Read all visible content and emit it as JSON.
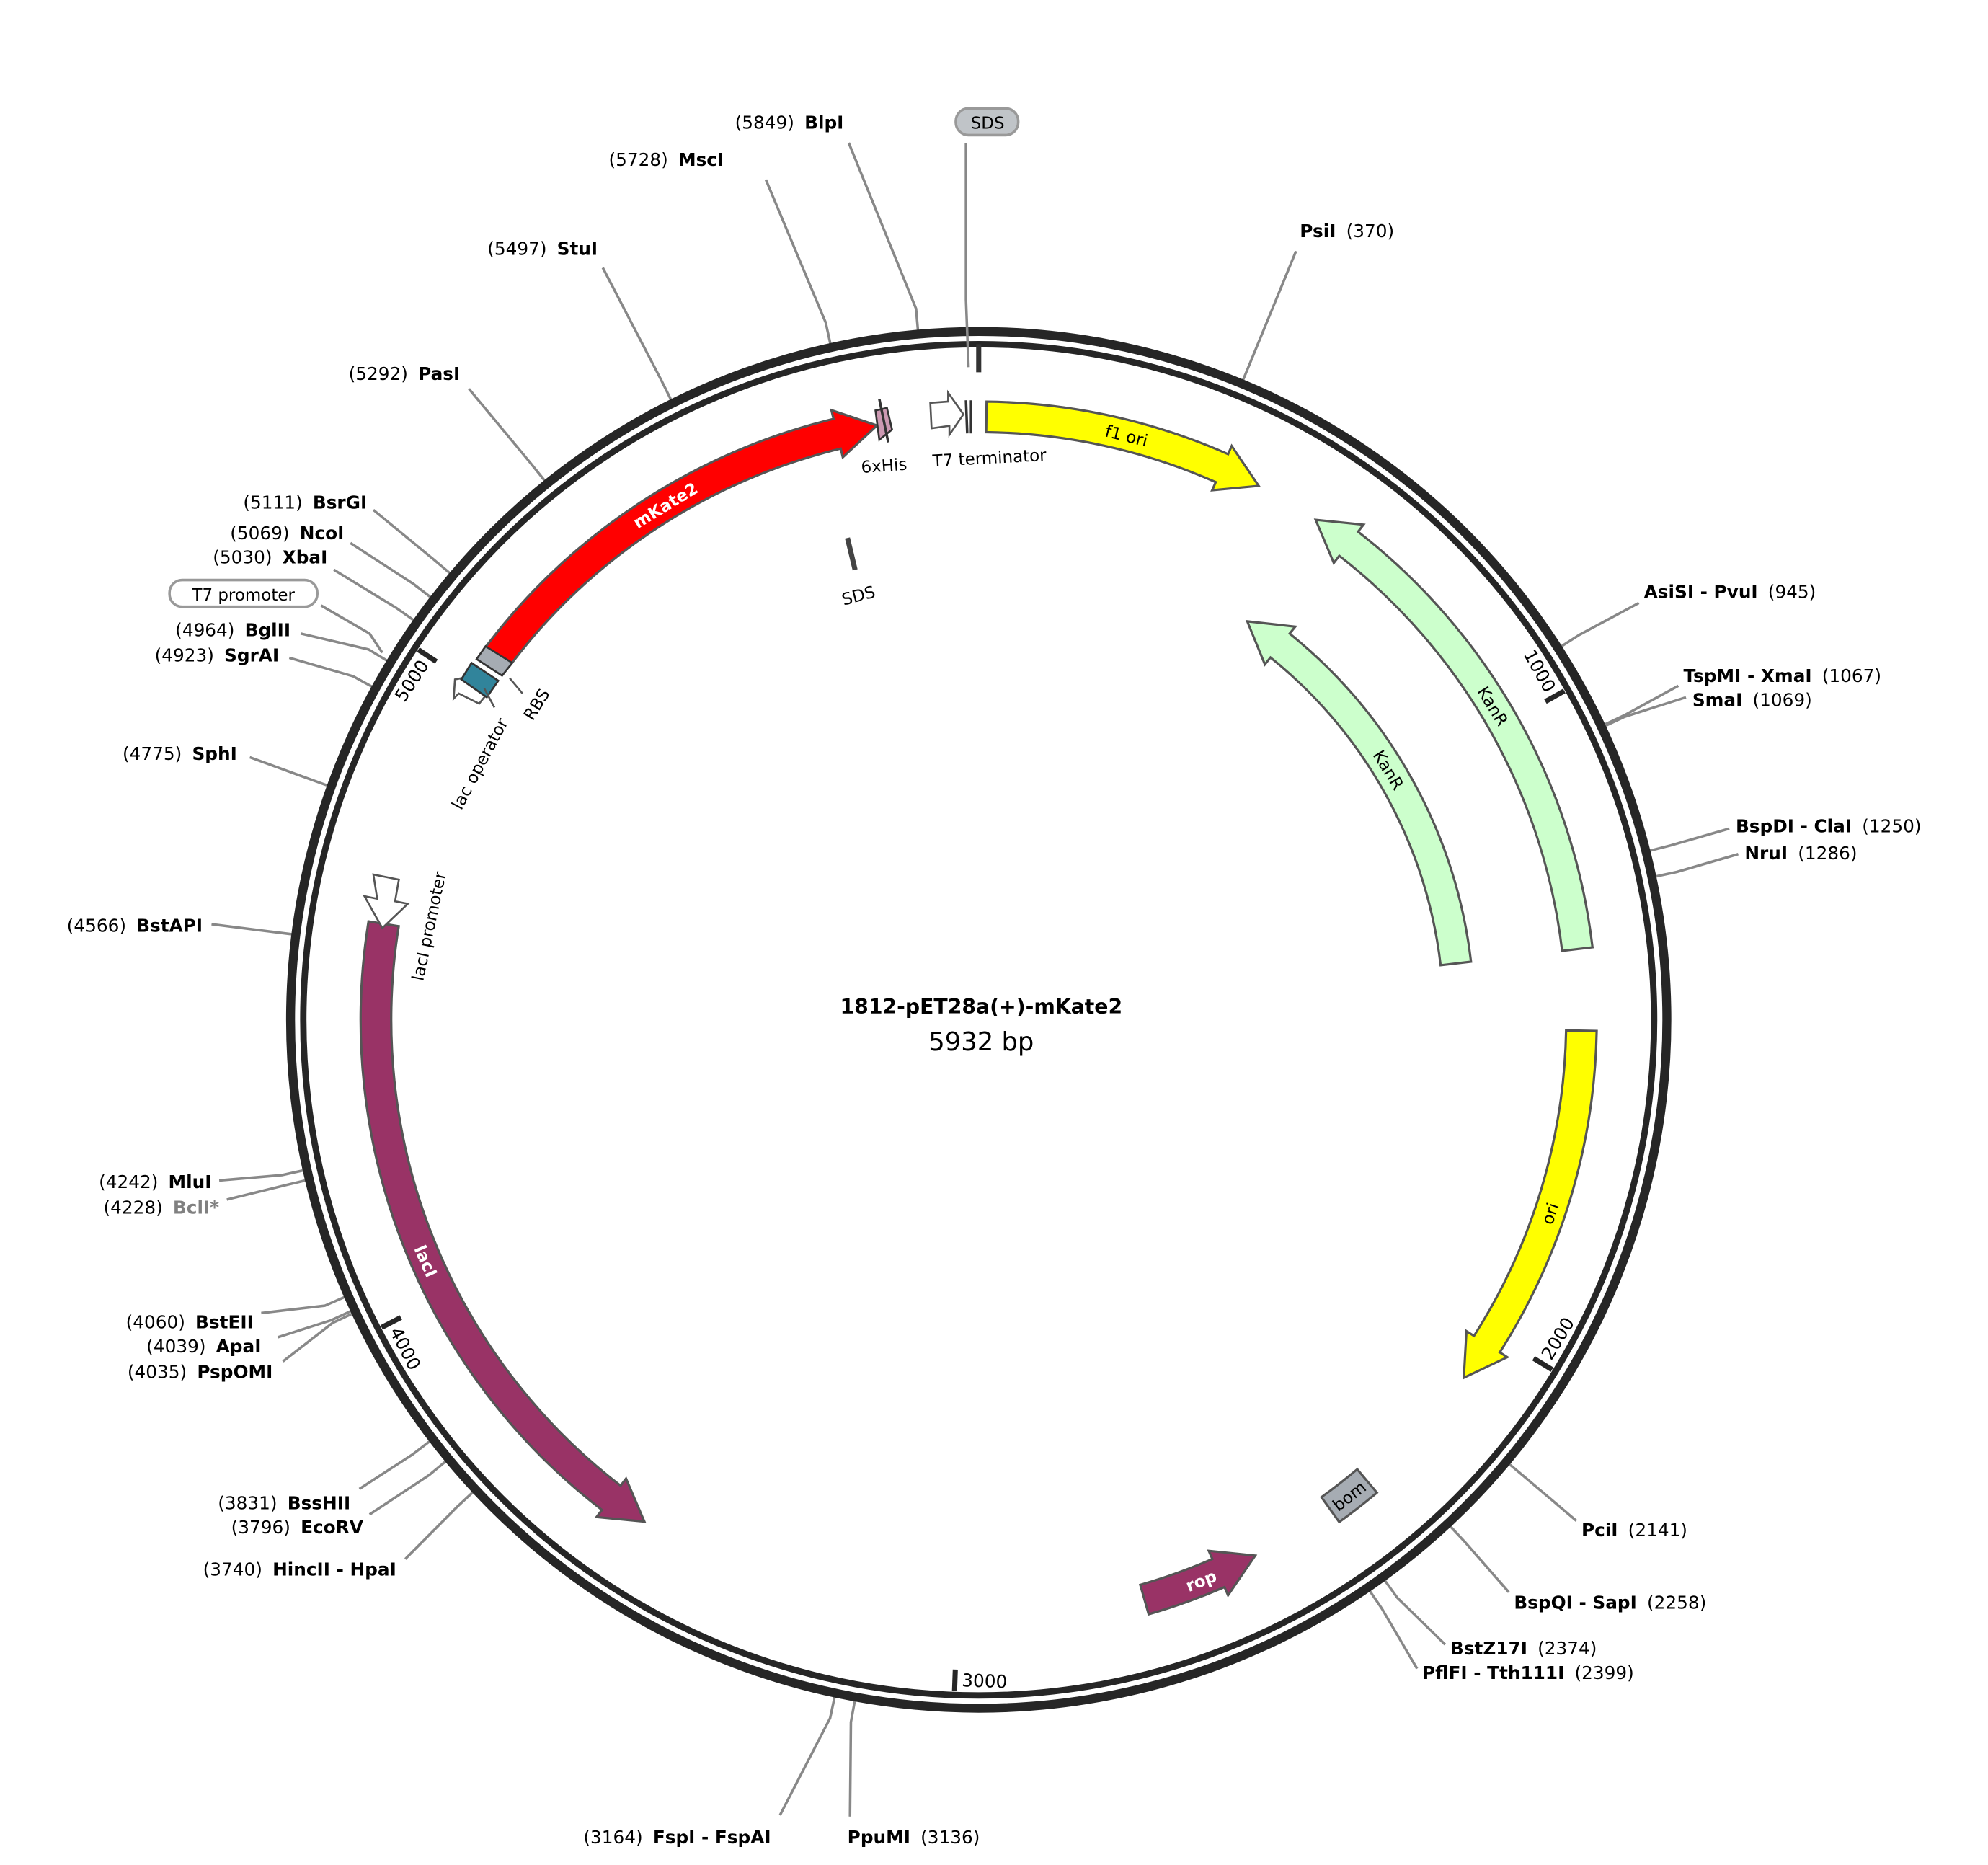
{
  "title": "1812-pET28a(+)-mKate2",
  "length_label": "5932 bp",
  "total_bp": 5932,
  "ticks": [
    {
      "bp": 1000,
      "label": "1000"
    },
    {
      "bp": 2000,
      "label": "2000"
    },
    {
      "bp": 3000,
      "label": "3000"
    },
    {
      "bp": 4000,
      "label": "4000"
    },
    {
      "bp": 5000,
      "label": "5000"
    }
  ],
  "features": [
    {
      "name": "f1 ori",
      "start": 12,
      "end": 456,
      "direction": "forward",
      "color": "#ffff00",
      "label_color": "#000000",
      "lane": "outer"
    },
    {
      "name": "KanR",
      "start": 560,
      "end": 1372,
      "direction": "reverse",
      "color": "#ccffcc",
      "label_color": "#000000",
      "lane": "outer"
    },
    {
      "name": "KanR",
      "start": 560,
      "end": 1372,
      "direction": "reverse",
      "color": "#ccffcc",
      "label_color": "#000000",
      "lane": "inner"
    },
    {
      "name": "ori",
      "start": 1500,
      "end": 2083,
      "direction": "forward",
      "color": "#ffff00",
      "label_color": "#000000",
      "lane": "outer"
    },
    {
      "name": "bom",
      "start": 2305,
      "end": 2378,
      "direction": "none",
      "color": "#a6acb3",
      "label_color": "#000000",
      "lane": "outer"
    },
    {
      "name": "rop",
      "start": 2516,
      "end": 2703,
      "direction": "reverse",
      "color": "#993366",
      "label_color": "#ffffff",
      "lane": "outer"
    },
    {
      "name": "lacI",
      "start": 3521,
      "end": 4600,
      "direction": "reverse",
      "color": "#993366",
      "label_color": "#ffffff",
      "lane": "outer"
    },
    {
      "name": "mKate2",
      "start": 5059,
      "end": 5772,
      "direction": "forward",
      "color": "#ff0000",
      "label_color": "#ffffff",
      "lane": "outer"
    }
  ],
  "small_features": [
    {
      "name": "lacI promoter",
      "color": "#ffffff"
    },
    {
      "name": "lac operator",
      "color": "#31849b"
    },
    {
      "name": "RBS",
      "color": "#a6acb3"
    },
    {
      "name": "T7 promoter",
      "color": "#ffffff"
    },
    {
      "name": "6xHis",
      "color": "#cc99b2"
    },
    {
      "name": "T7 terminator",
      "color": "#ffffff"
    }
  ],
  "primers": [
    {
      "label": "SDS"
    },
    {
      "label": "SDS"
    }
  ],
  "enzymes": [
    {
      "name": "BlpI",
      "pos": 5849,
      "pos_label": "(5849)"
    },
    {
      "name": "MscI",
      "pos": 5728,
      "pos_label": "(5728)"
    },
    {
      "name": "StuI",
      "pos": 5497,
      "pos_label": "(5497)"
    },
    {
      "name": "PasI",
      "pos": 5292,
      "pos_label": "(5292)"
    },
    {
      "name": "BsrGI",
      "pos": 5111,
      "pos_label": "(5111)"
    },
    {
      "name": "NcoI",
      "pos": 5069,
      "pos_label": "(5069)"
    },
    {
      "name": "XbaI",
      "pos": 5030,
      "pos_label": "(5030)"
    },
    {
      "name": "BglII",
      "pos": 4964,
      "pos_label": "(4964)"
    },
    {
      "name": "SgrAI",
      "pos": 4923,
      "pos_label": "(4923)"
    },
    {
      "name": "SphI",
      "pos": 4775,
      "pos_label": "(4775)"
    },
    {
      "name": "BstAPI",
      "pos": 4566,
      "pos_label": "(4566)"
    },
    {
      "name": "MluI",
      "pos": 4242,
      "pos_label": "(4242)"
    },
    {
      "name": "BclI*",
      "pos": 4228,
      "pos_label": "(4228)",
      "color": "#808080"
    },
    {
      "name": "BstEII",
      "pos": 4060,
      "pos_label": "(4060)"
    },
    {
      "name": "ApaI",
      "pos": 4039,
      "pos_label": "(4039)"
    },
    {
      "name": "PspOMI",
      "pos": 4035,
      "pos_label": "(4035)"
    },
    {
      "name": "BssHII",
      "pos": 3831,
      "pos_label": "(3831)"
    },
    {
      "name": "EcoRV",
      "pos": 3796,
      "pos_label": "(3796)"
    },
    {
      "name": "HincII - HpaI",
      "pos": 3740,
      "pos_label": "(3740)"
    },
    {
      "name": "FspI - FspAI",
      "pos": 3164,
      "pos_label": "(3164)"
    },
    {
      "name": "PsiI",
      "pos": 370,
      "pos_label": "(370)"
    },
    {
      "name": "AsiSI - PvuI",
      "pos": 945,
      "pos_label": "(945)"
    },
    {
      "name": "TspMI - XmaI",
      "pos": 1067,
      "pos_label": "(1067)"
    },
    {
      "name": "SmaI",
      "pos": 1069,
      "pos_label": "(1069)"
    },
    {
      "name": "BspDI - ClaI",
      "pos": 1250,
      "pos_label": "(1250)"
    },
    {
      "name": "NruI",
      "pos": 1286,
      "pos_label": "(1286)"
    },
    {
      "name": "PciI",
      "pos": 2141,
      "pos_label": "(2141)"
    },
    {
      "name": "BspQI - SapI",
      "pos": 2258,
      "pos_label": "(2258)"
    },
    {
      "name": "BstZ17I",
      "pos": 2374,
      "pos_label": "(2374)"
    },
    {
      "name": "PflFI - Tth111I",
      "pos": 2399,
      "pos_label": "(2399)"
    },
    {
      "name": "PpuMI",
      "pos": 3136,
      "pos_label": "(3136)"
    }
  ]
}
